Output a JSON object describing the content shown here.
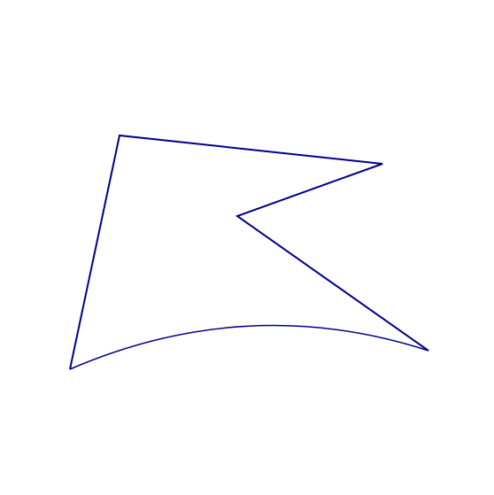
{
  "diagram": {
    "background_color": "#ffffff",
    "shape": {
      "name": "concave-pentagon-with-curved-base",
      "stroke_color": "#00008b",
      "fill": "none"
    }
  }
}
